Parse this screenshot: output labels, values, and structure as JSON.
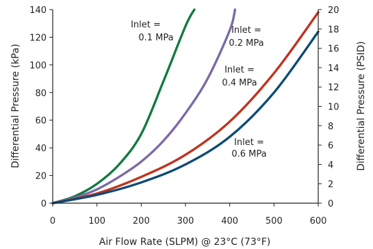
{
  "chart_data": {
    "type": "line",
    "title": "",
    "xlabel": "Air Flow Rate (SLPM) @ 23°C (73°F)",
    "ylabel": "Differential Pressure (kPa)",
    "y2label": "Differential Pressure (PSID)",
    "xlim": [
      0,
      600
    ],
    "ylim": [
      0,
      140
    ],
    "y2lim": [
      0,
      20
    ],
    "xticks": [
      0,
      100,
      200,
      300,
      400,
      500,
      600
    ],
    "yticks": [
      0,
      20,
      40,
      60,
      80,
      100,
      120,
      140
    ],
    "y2ticks": [
      0,
      2,
      4,
      6,
      8,
      10,
      12,
      14,
      16,
      18,
      20
    ],
    "grid": false,
    "legend": "none",
    "series": [
      {
        "name": "Inlet = 0.1 MPa",
        "color": "#137a3f",
        "x": [
          0,
          50,
          100,
          150,
          200,
          250,
          300,
          320
        ],
        "y": [
          0,
          5,
          14,
          28,
          50,
          88,
          128,
          140
        ]
      },
      {
        "name": "Inlet = 0.2 MPa",
        "color": "#7b6aa6",
        "x": [
          0,
          50,
          100,
          150,
          200,
          250,
          300,
          350,
          400,
          412
        ],
        "y": [
          0,
          4,
          10,
          19,
          30,
          45,
          65,
          90,
          125,
          140
        ]
      },
      {
        "name": "Inlet = 0.4 MPa",
        "color": "#c0331f",
        "x": [
          0,
          100,
          200,
          300,
          400,
          500,
          600
        ],
        "y": [
          0,
          7,
          19,
          35,
          59,
          94,
          138
        ]
      },
      {
        "name": "Inlet = 0.6 MPa",
        "color": "#0d4a74",
        "x": [
          0,
          100,
          200,
          300,
          400,
          500,
          600
        ],
        "y": [
          0,
          6,
          15,
          28,
          48,
          80,
          124
        ]
      }
    ],
    "annotations": [
      {
        "line1": "Inlet =",
        "line2": "0.1 MPa"
      },
      {
        "line1": "Inlet =",
        "line2": "0.2 MPa"
      },
      {
        "line1": "Inlet =",
        "line2": "0.4 MPa"
      },
      {
        "line1": "Inlet =",
        "line2": "0.6 MPa"
      }
    ]
  }
}
